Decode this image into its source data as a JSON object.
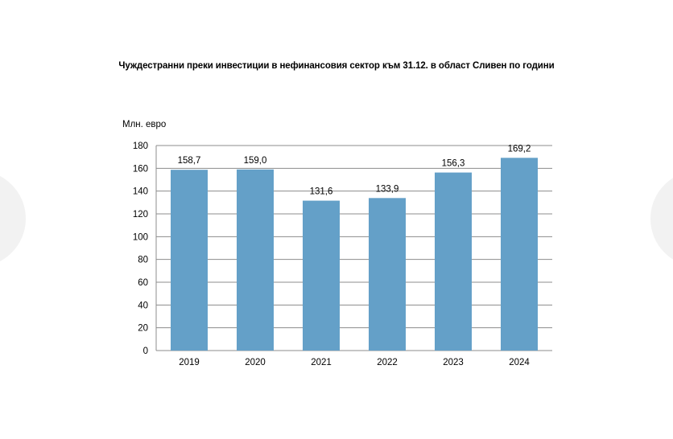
{
  "chart_data": {
    "type": "bar",
    "title": "Чуждестранни преки инвестиции в нефинансовия сектор към 31.12. в област Сливен по години",
    "ylabel": "Млн. евро",
    "xlabel": "",
    "categories": [
      "2019",
      "2020",
      "2021",
      "2022",
      "2023",
      "2024"
    ],
    "values": [
      158.7,
      159.0,
      131.6,
      133.9,
      156.3,
      169.2
    ],
    "data_labels": [
      "158,7",
      "159,0",
      "131,6",
      "133,9",
      "156,3",
      "169,2"
    ],
    "ylim": [
      0,
      180
    ],
    "yticks": [
      0,
      20,
      40,
      60,
      80,
      100,
      120,
      140,
      160,
      180
    ],
    "grid": true,
    "bar_color": "#64a0c8",
    "grid_color": "#8c8c8c"
  }
}
